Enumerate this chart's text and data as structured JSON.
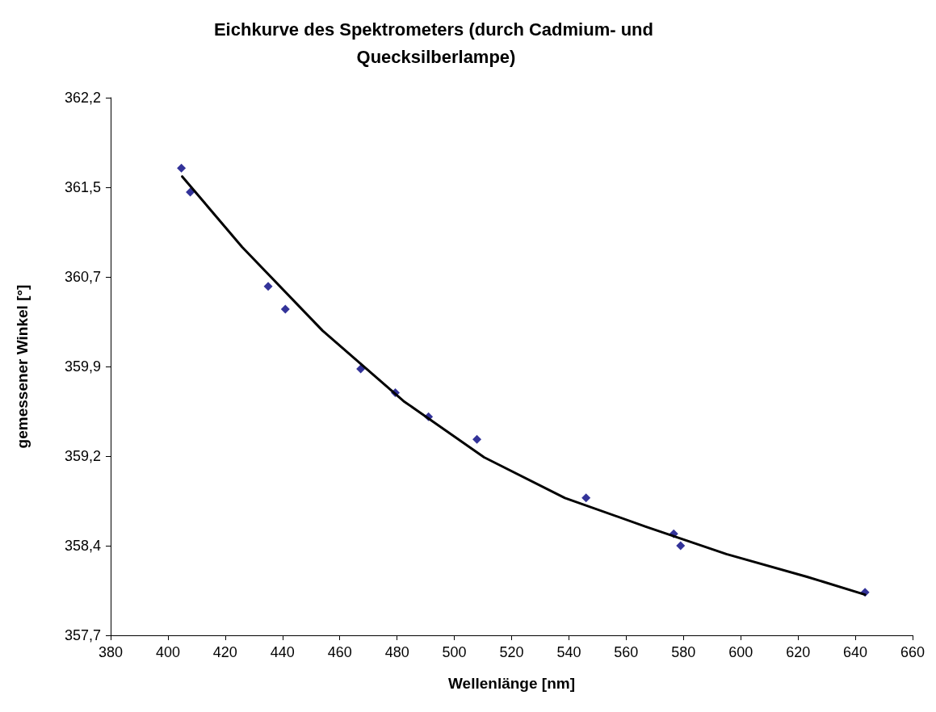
{
  "chart_data": {
    "type": "scatter",
    "title": "Eichkurve des Spektrometers (durch Cadmium- und Quecksilberlampe)",
    "xlabel": "Wellenlänge [nm]",
    "ylabel": "gemessener Winkel [°]",
    "xlim": [
      380,
      660
    ],
    "xticks": [
      380,
      400,
      420,
      440,
      460,
      480,
      500,
      520,
      540,
      560,
      580,
      600,
      620,
      640,
      660
    ],
    "ylim": [
      357.7,
      362.2
    ],
    "yticks": [
      {
        "value": 357.7,
        "label": "357,7"
      },
      {
        "value": 358.45,
        "label": "358,4"
      },
      {
        "value": 359.2,
        "label": "359,2"
      },
      {
        "value": 359.95,
        "label": "359,9"
      },
      {
        "value": 360.7,
        "label": "360,7"
      },
      {
        "value": 361.45,
        "label": "361,5"
      },
      {
        "value": 362.2,
        "label": "362,2"
      }
    ],
    "grid": false,
    "series": [
      {
        "type": "scatter",
        "marker": "diamond",
        "color": "#000080",
        "x": [
          404.7,
          407.8,
          435,
          441,
          467.3,
          479.4,
          491,
          507.9,
          546,
          576.6,
          579,
          643.4
        ],
        "values": [
          361.61,
          361.41,
          360.62,
          360.43,
          359.93,
          359.73,
          359.53,
          359.34,
          358.85,
          358.55,
          358.45,
          358.06
        ]
      },
      {
        "type": "line",
        "marker": "none",
        "line_style": "solid",
        "color": "#000000",
        "x": [
          405,
          425.9,
          454,
          482.3,
          510.4,
          538.6,
          566.8,
          595,
          623.1,
          643.4
        ],
        "values": [
          361.54,
          360.95,
          360.25,
          359.66,
          359.19,
          358.85,
          358.61,
          358.38,
          358.19,
          358.04
        ]
      }
    ]
  }
}
